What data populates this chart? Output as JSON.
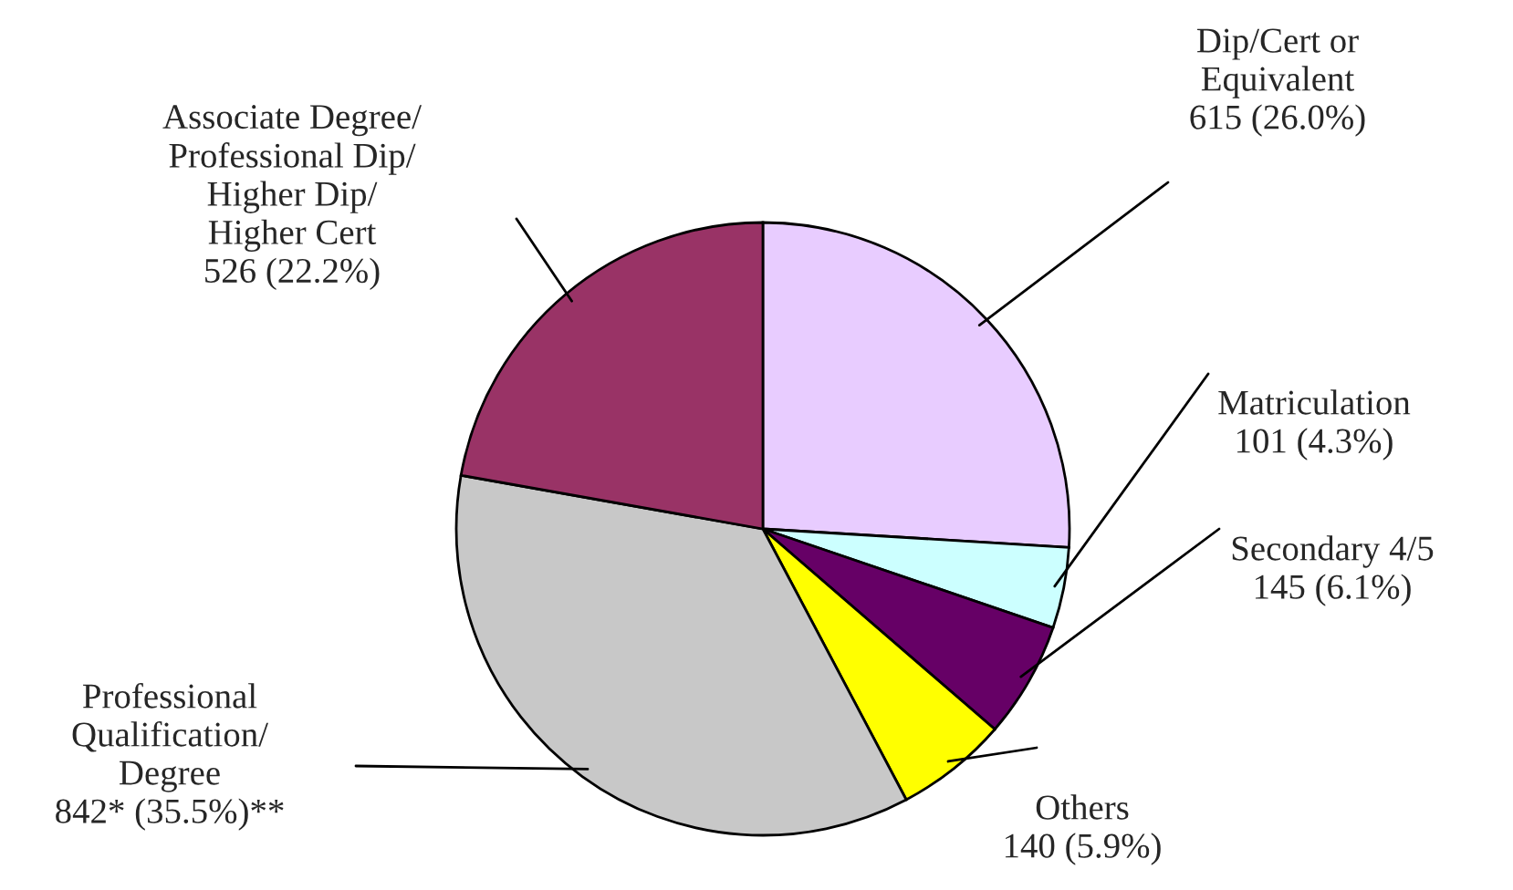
{
  "chart_data": {
    "type": "pie",
    "categories": [
      "Dip/Cert or\nEquivalent",
      "Matriculation",
      "Secondary 4/5",
      "Others",
      "Professional\nQualification/\nDegree",
      "Associate Degree/\nProfessional Dip/\nHigher Dip/\nHigher Cert"
    ],
    "values": [
      615,
      101,
      145,
      140,
      842,
      526
    ],
    "value_labels": [
      "615 (26.0%)",
      "101 (4.3%)",
      "145 (6.1%)",
      "140 (5.9%)",
      "842* (35.5%)**",
      "526 (22.2%)"
    ],
    "colors": [
      "#e8ccff",
      "#ccffff",
      "#660066",
      "#ffff00",
      "#c8c8c8",
      "#993366"
    ],
    "legend": false
  }
}
